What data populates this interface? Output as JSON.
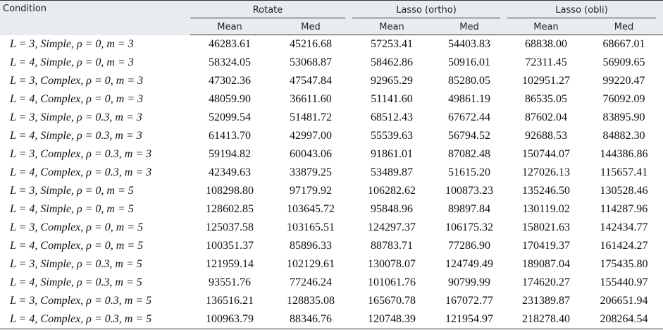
{
  "table": {
    "corner": "Condition",
    "groups": [
      "Rotate",
      "Lasso (ortho)",
      "Lasso (obli)"
    ],
    "subheaders": [
      "Mean",
      "Med",
      "Mean",
      "Med",
      "Mean",
      "Med"
    ],
    "rows": [
      [
        "L = 3, Simple, ρ = 0, m = 3",
        "46283.61",
        "45216.68",
        "57253.41",
        "54403.83",
        "68838.00",
        "68667.01"
      ],
      [
        "L = 4, Simple, ρ = 0, m = 3",
        "58324.05",
        "53068.87",
        "58462.86",
        "50916.01",
        "72311.45",
        "56909.65"
      ],
      [
        "L = 3, Complex, ρ = 0, m = 3",
        "47302.36",
        "47547.84",
        "92965.29",
        "85280.05",
        "102951.27",
        "99220.47"
      ],
      [
        "L = 4, Complex, ρ = 0, m = 3",
        "48059.90",
        "36611.60",
        "51141.60",
        "49861.19",
        "86535.05",
        "76092.09"
      ],
      [
        "L = 3, Simple, ρ = 0.3, m = 3",
        "52099.54",
        "51481.72",
        "68512.43",
        "67672.44",
        "87602.04",
        "83895.90"
      ],
      [
        "L = 4, Simple, ρ = 0.3, m = 3",
        "61413.70",
        "42997.00",
        "55539.63",
        "56794.52",
        "92688.53",
        "84882.30"
      ],
      [
        "L = 3, Complex, ρ = 0.3, m = 3",
        "59194.82",
        "60043.06",
        "91861.01",
        "87082.48",
        "150744.07",
        "144386.86"
      ],
      [
        "L = 4, Complex, ρ = 0.3, m = 3",
        "42349.63",
        "33879.25",
        "53489.87",
        "51615.20",
        "127026.13",
        "115657.41"
      ],
      [
        "L = 3, Simple, ρ = 0, m = 5",
        "108298.80",
        "97179.92",
        "106282.62",
        "100873.23",
        "135246.50",
        "130528.46"
      ],
      [
        "L = 4, Simple, ρ = 0, m = 5",
        "128602.85",
        "103645.72",
        "95848.96",
        "89897.84",
        "130119.02",
        "114287.96"
      ],
      [
        "L = 3, Complex, ρ = 0, m = 5",
        "125037.58",
        "103165.51",
        "124297.37",
        "106175.32",
        "158021.63",
        "142434.77"
      ],
      [
        "L = 4, Complex, ρ = 0, m = 5",
        "100351.37",
        "85896.33",
        "88783.71",
        "77286.90",
        "170419.37",
        "161424.27"
      ],
      [
        "L = 3, Simple, ρ = 0.3, m = 5",
        "121959.14",
        "102129.61",
        "130078.07",
        "124749.49",
        "189087.04",
        "175435.80"
      ],
      [
        "L = 4, Simple, ρ = 0.3, m = 5",
        "93551.76",
        "77246.24",
        "101061.76",
        "90799.99",
        "174620.27",
        "155440.97"
      ],
      [
        "L = 3, Complex, ρ = 0.3, m = 5",
        "136516.21",
        "128835.08",
        "165670.78",
        "167072.77",
        "231389.87",
        "206651.94"
      ],
      [
        "L = 4, Complex, ρ = 0.3, m = 5",
        "100963.79",
        "88346.76",
        "120748.39",
        "121954.97",
        "218278.40",
        "208264.54"
      ]
    ]
  }
}
